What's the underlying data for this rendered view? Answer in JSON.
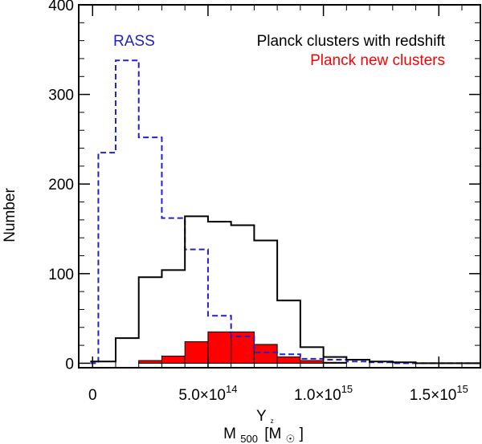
{
  "chart_data": {
    "type": "histogram",
    "xlabel": {
      "main": "M",
      "subscript": "500",
      "superscript": "Y",
      "superscript_sub": "z",
      "unit_open": "[M",
      "unit_close": "]",
      "sun_symbol": "☉"
    },
    "ylabel": "Number",
    "xlim": [
      -60000000000000.0,
      1680000000000000.0
    ],
    "ylim": [
      -5,
      400
    ],
    "x_ticks": [
      {
        "value": 0,
        "mantissa": "0",
        "exp": ""
      },
      {
        "value": 500000000000000.0,
        "mantissa": "5.0×10",
        "exp": "14"
      },
      {
        "value": 1000000000000000.0,
        "mantissa": "1.0×10",
        "exp": "15"
      },
      {
        "value": 1500000000000000.0,
        "mantissa": "1.5×10",
        "exp": "15"
      }
    ],
    "y_ticks": [
      0,
      100,
      200,
      300,
      400
    ],
    "bin_edges": [
      -10000000000000.0,
      25000000000000.0,
      100000000000000.0,
      200000000000000.0,
      300000000000000.0,
      400000000000000.0,
      500000000000000.0,
      600000000000000.0,
      700000000000000.0,
      800000000000000.0,
      900000000000000.0,
      1000000000000000.0,
      1100000000000000.0,
      1200000000000000.0,
      1300000000000000.0,
      1400000000000000.0,
      1500000000000000.0,
      1600000000000000.0,
      1680000000000000.0
    ],
    "series": [
      {
        "name": "RASS",
        "color": "#2222cc",
        "style": "dashed",
        "values": [
          0,
          235,
          338,
          252,
          162,
          127,
          53,
          30,
          12,
          10,
          5,
          4,
          2,
          1,
          0,
          0,
          0,
          0
        ]
      },
      {
        "name": "Planck clusters with redshift",
        "color": "#000000",
        "style": "solid",
        "values": [
          2,
          2,
          28,
          96,
          104,
          164,
          158,
          154,
          137,
          70,
          18,
          7,
          4,
          2,
          1,
          0,
          0,
          0
        ]
      },
      {
        "name": "Planck new clusters",
        "color": "#ff0000",
        "style": "filled",
        "values": [
          0,
          0,
          0,
          3,
          8,
          24,
          35,
          35,
          21,
          7,
          3,
          1,
          0,
          0,
          0,
          0,
          0,
          0
        ]
      }
    ],
    "legend": [
      {
        "label": "RASS",
        "color": "#2222cc",
        "position": "top-left"
      },
      {
        "label": "Planck clusters with redshift",
        "color": "#000000",
        "position": "top-right"
      },
      {
        "label": "Planck new clusters",
        "color": "#ff0000",
        "position": "top-right"
      }
    ]
  }
}
